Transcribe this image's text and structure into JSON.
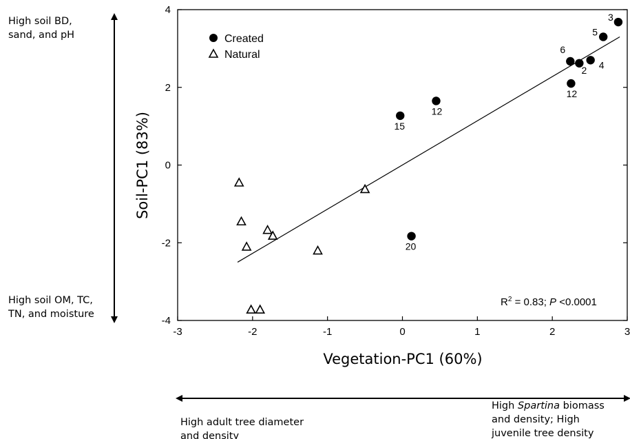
{
  "chart_data": {
    "type": "scatter",
    "xlabel": "Vegetation-PC1 (60%)",
    "ylabel": "Soil-PC1 (83%)",
    "xlim": [
      -3,
      3
    ],
    "ylim": [
      -4,
      4
    ],
    "xticks": [
      "-3",
      "-2",
      "-1",
      "0",
      "1",
      "2",
      "3"
    ],
    "yticks": [
      "4",
      "2",
      "0",
      "-2",
      "-4"
    ],
    "legend_position": "top-left",
    "grid": false,
    "series": [
      {
        "name": "Created",
        "marker": "filled-circle",
        "color": "#000000",
        "points": [
          {
            "x": 2.88,
            "y": 3.68,
            "label": "3"
          },
          {
            "x": 2.68,
            "y": 3.3,
            "label": "5"
          },
          {
            "x": 2.24,
            "y": 2.67,
            "label": "6"
          },
          {
            "x": 2.36,
            "y": 2.62,
            "label": "2"
          },
          {
            "x": 2.51,
            "y": 2.7,
            "label": "4"
          },
          {
            "x": 2.25,
            "y": 2.1,
            "label": "12"
          },
          {
            "x": 0.45,
            "y": 1.65,
            "label": "12"
          },
          {
            "x": -0.03,
            "y": 1.27,
            "label": "15"
          },
          {
            "x": 0.12,
            "y": -1.83,
            "label": "20"
          }
        ]
      },
      {
        "name": "Natural",
        "marker": "open-triangle",
        "color": "#000000",
        "points": [
          {
            "x": -2.18,
            "y": -0.45
          },
          {
            "x": -2.15,
            "y": -1.45
          },
          {
            "x": -2.08,
            "y": -2.1
          },
          {
            "x": -1.8,
            "y": -1.67
          },
          {
            "x": -1.73,
            "y": -1.82
          },
          {
            "x": -1.13,
            "y": -2.2
          },
          {
            "x": -0.5,
            "y": -0.62
          },
          {
            "x": -2.02,
            "y": -3.72
          },
          {
            "x": -1.9,
            "y": -3.72
          }
        ]
      }
    ],
    "regression": {
      "x_start": -2.2,
      "x_end": 2.9,
      "y_start": -2.5,
      "y_end": 3.3
    },
    "annotation": {
      "r2": "R",
      "r2_sup": "2",
      "r2_rest": " = 0.83; ",
      "p": "P",
      "p_rest": " <0.0001"
    },
    "y_axis_notes": {
      "top": [
        "High soil BD,",
        "sand, and pH"
      ],
      "bottom": [
        "High soil OM, TC,",
        "TN, and moisture"
      ]
    },
    "x_axis_notes": {
      "left": [
        "High adult tree diameter",
        "and density"
      ],
      "right_line1_pre": "High ",
      "right_line1_italic": "Spartina",
      "right_line1_post": " biomass",
      "right_line2": "and density; High",
      "right_line3": "juvenile tree density"
    }
  }
}
